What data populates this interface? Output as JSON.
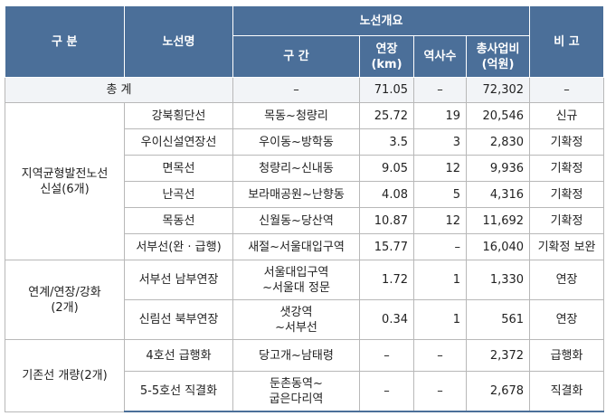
{
  "headers": {
    "category": "구 분",
    "route_name": "노선명",
    "overview": "노선개요",
    "section": "구 간",
    "length": "연장\n(km)",
    "stations": "역사수",
    "cost": "총사업비\n(억원)",
    "note": "비 고"
  },
  "total": {
    "label": "총 계",
    "section": "–",
    "length": "71.05",
    "stations": "–",
    "cost": "72,302",
    "note": "–"
  },
  "groups": [
    {
      "label": "지역균형발전노선\n신설(6개)",
      "rows": [
        {
          "name": "강북횡단선",
          "section": "목동~청량리",
          "length": "25.72",
          "stations": "19",
          "cost": "20,546",
          "note": "신규"
        },
        {
          "name": "우이신설연장선",
          "section": "우이동~방학동",
          "length": "3.5",
          "stations": "3",
          "cost": "2,830",
          "note": "기확정"
        },
        {
          "name": "면목선",
          "section": "청량리~신내동",
          "length": "9.05",
          "stations": "12",
          "cost": "9,936",
          "note": "기확정"
        },
        {
          "name": "난곡선",
          "section": "보라매공원~난향동",
          "length": "4.08",
          "stations": "5",
          "cost": "4,316",
          "note": "기확정"
        },
        {
          "name": "목동선",
          "section": "신월동~당산역",
          "length": "10.87",
          "stations": "12",
          "cost": "11,692",
          "note": "기확정"
        },
        {
          "name": "서부선(완 · 급행)",
          "section": "새절~서울대입구역",
          "length": "15.77",
          "stations": "–",
          "cost": "16,040",
          "note": "기확정 보완"
        }
      ]
    },
    {
      "label": "연계/연장/강화\n(2개)",
      "rows": [
        {
          "name": "서부선 남부연장",
          "section": "서울대입구역\n~서울대 정문",
          "length": "1.72",
          "stations": "1",
          "cost": "1,330",
          "note": "연장"
        },
        {
          "name": "신림선 북부연장",
          "section": "샛강역\n~서부선",
          "length": "0.34",
          "stations": "1",
          "cost": "561",
          "note": "연장"
        }
      ]
    },
    {
      "label": "기존선 개량(2개)",
      "rows": [
        {
          "name": "4호선 급행화",
          "section": "당고개~남태령",
          "length": "–",
          "stations": "–",
          "cost": "2,372",
          "note": "급행화"
        },
        {
          "name": "5-5호선 직결화",
          "section": "둔촌동역~\n굽은다리역",
          "length": "–",
          "stations": "–",
          "cost": "2,678",
          "note": "직결화"
        }
      ]
    }
  ]
}
